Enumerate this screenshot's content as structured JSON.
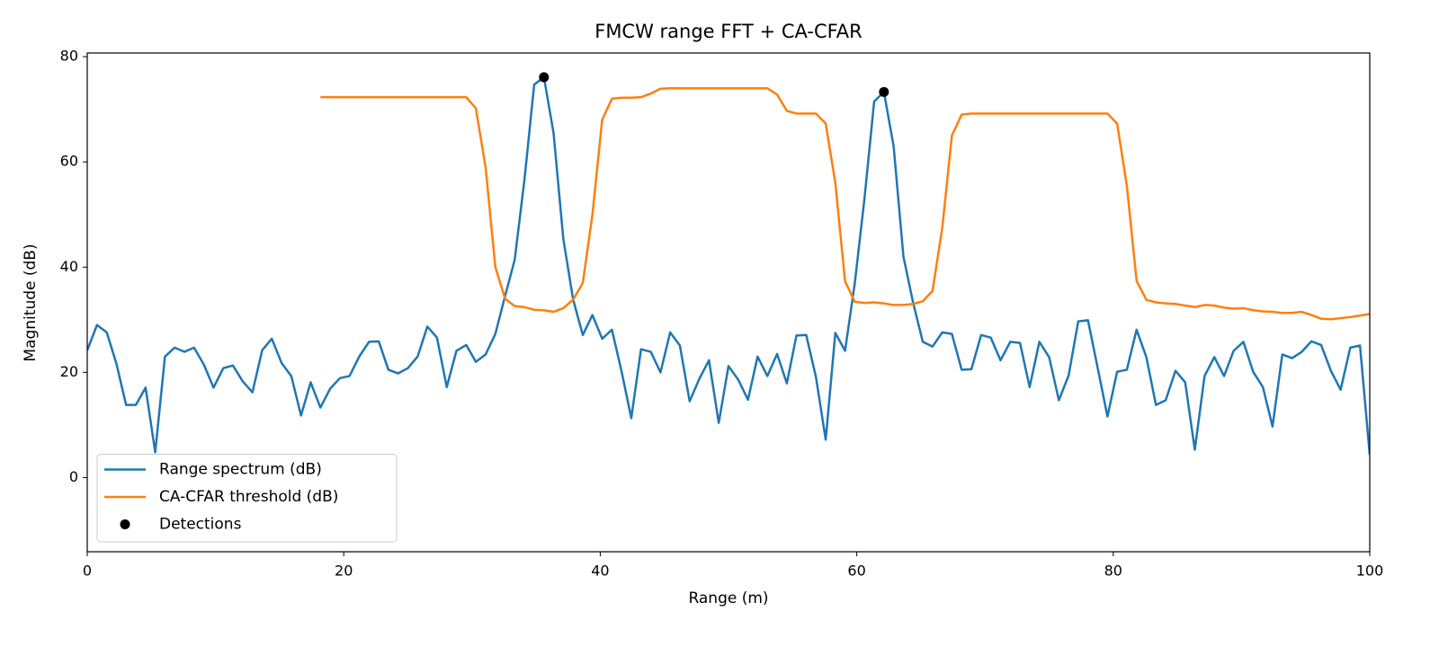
{
  "chart_data": {
    "type": "line",
    "title": "FMCW range FFT + CA-CFAR",
    "x_label": "Range (m)",
    "y_label": "Magnitude (dB)",
    "xlim": [
      0,
      100
    ],
    "ylim": [
      -14.1,
      80.7
    ],
    "xticks": [
      0,
      20,
      40,
      60,
      80,
      100
    ],
    "yticks": [
      0,
      20,
      40,
      60,
      80
    ],
    "grid": false,
    "legend": "lower left",
    "x": [
      0,
      0.76,
      1.52,
      2.27,
      3.03,
      3.79,
      4.55,
      5.3,
      6.06,
      6.82,
      7.58,
      8.33,
      9.09,
      9.85,
      10.61,
      11.36,
      12.12,
      12.88,
      13.64,
      14.39,
      15.15,
      15.91,
      16.67,
      17.42,
      18.18,
      18.94,
      19.7,
      20.45,
      21.21,
      21.97,
      22.73,
      23.48,
      24.24,
      25.0,
      25.76,
      26.52,
      27.27,
      28.03,
      28.79,
      29.55,
      30.3,
      31.06,
      31.82,
      32.58,
      33.33,
      34.09,
      34.85,
      35.61,
      36.36,
      37.12,
      37.88,
      38.64,
      39.39,
      40.15,
      40.91,
      41.67,
      42.42,
      43.18,
      43.94,
      44.7,
      45.45,
      46.21,
      46.97,
      47.73,
      48.48,
      49.24,
      50.0,
      50.76,
      51.52,
      52.27,
      53.03,
      53.79,
      54.55,
      55.3,
      56.06,
      56.82,
      57.58,
      58.33,
      59.09,
      59.85,
      60.61,
      61.36,
      62.12,
      62.88,
      63.64,
      64.39,
      65.15,
      65.91,
      66.67,
      67.42,
      68.18,
      68.94,
      69.7,
      70.45,
      71.21,
      71.97,
      72.73,
      73.48,
      74.24,
      75.0,
      75.76,
      76.52,
      77.27,
      78.03,
      78.79,
      79.55,
      80.3,
      81.06,
      81.82,
      82.58,
      83.33,
      84.09,
      84.85,
      85.61,
      86.36,
      87.12,
      87.88,
      88.64,
      89.39,
      90.15,
      90.91,
      91.67,
      92.42,
      93.18,
      93.94,
      94.7,
      95.45,
      96.21,
      96.97,
      97.73,
      98.48,
      99.24,
      100
    ],
    "series": [
      {
        "name": "Range spectrum (dB)",
        "color": "#1f77b4",
        "values": [
          24.2,
          29,
          27.6,
          21.7,
          13.8,
          13.8,
          17.1,
          4.8,
          23,
          24.7,
          23.9,
          24.7,
          21.5,
          17.1,
          20.8,
          21.3,
          18.3,
          16.2,
          24.2,
          26.4,
          21.8,
          19.3,
          11.8,
          18.1,
          13.3,
          16.9,
          18.9,
          19.3,
          23,
          25.8,
          25.9,
          20.5,
          19.8,
          20.8,
          23,
          28.7,
          26.6,
          17.2,
          24.1,
          25.2,
          22,
          23.4,
          27.3,
          34.5,
          41.4,
          56.6,
          74.7,
          76.1,
          65.5,
          45.4,
          33.9,
          27.1,
          30.9,
          26.4,
          28.1,
          20.1,
          11.3,
          24.4,
          23.9,
          20,
          27.6,
          25.1,
          14.5,
          18.8,
          22.3,
          10.4,
          21.2,
          18.6,
          14.8,
          23,
          19.3,
          23.5,
          17.9,
          27,
          27.1,
          19.1,
          7.2,
          27.5,
          24.1,
          37,
          53.2,
          71.5,
          73.3,
          62.9,
          42,
          33.3,
          25.8,
          24.9,
          27.6,
          27.3,
          20.5,
          20.6,
          27.1,
          26.6,
          22.3,
          25.8,
          25.6,
          17.2,
          25.8,
          22.9,
          14.7,
          19.4,
          29.7,
          29.9,
          20.8,
          11.6,
          20.1,
          20.5,
          28.1,
          22.9,
          13.8,
          14.7,
          20.3,
          18.1,
          5.3,
          19.3,
          22.9,
          19.3,
          24.1,
          25.8,
          20.1,
          17.2,
          9.7,
          23.4,
          22.7,
          23.9,
          25.9,
          25.2,
          20.3,
          16.7,
          24.7,
          25.1,
          4.3
        ]
      },
      {
        "name": "CA-CFAR threshold (dB)",
        "color": "#ff7f0e",
        "values": [
          null,
          null,
          null,
          null,
          null,
          null,
          null,
          null,
          null,
          null,
          null,
          null,
          null,
          null,
          null,
          null,
          null,
          null,
          null,
          null,
          null,
          null,
          null,
          null,
          72.3,
          72.3,
          72.3,
          72.3,
          72.3,
          72.3,
          72.3,
          72.3,
          72.3,
          72.3,
          72.3,
          72.3,
          72.3,
          72.3,
          72.3,
          72.3,
          70.2,
          59,
          40,
          34,
          32.6,
          32.4,
          31.9,
          31.8,
          31.5,
          32.2,
          33.8,
          37,
          50,
          68,
          72,
          72.2,
          72.2,
          72.3,
          73,
          73.9,
          74,
          74,
          74,
          74,
          74,
          74,
          74,
          74,
          74,
          74,
          74,
          72.8,
          69.7,
          69.2,
          69.2,
          69.2,
          67.3,
          56,
          37.3,
          33.4,
          33.2,
          33.3,
          33.1,
          32.8,
          32.8,
          33,
          33.5,
          35.5,
          47.5,
          65,
          69,
          69.2,
          69.2,
          69.2,
          69.2,
          69.2,
          69.2,
          69.2,
          69.2,
          69.2,
          69.2,
          69.2,
          69.2,
          69.2,
          69.2,
          69.2,
          67.3,
          55.5,
          37.4,
          33.8,
          33.3,
          33.1,
          33,
          32.7,
          32.4,
          32.8,
          32.7,
          32.3,
          32.1,
          32.2,
          31.8,
          31.6,
          31.5,
          31.3,
          31.3,
          31.5,
          30.9,
          30.2,
          30.1,
          30.3,
          30.5,
          30.8,
          31.1
        ]
      },
      {
        "name": "Detections",
        "type": "scatter",
        "color": "#000000",
        "x": [
          35.61,
          62.12
        ],
        "values": [
          76.1,
          73.3
        ]
      }
    ]
  }
}
